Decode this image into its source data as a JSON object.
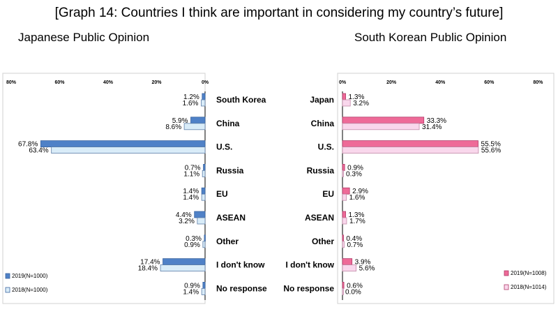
{
  "title": "[Graph 14: Countries I think are important in considering my country’s future]",
  "chart_data": [
    {
      "type": "bar",
      "title": "Japanese Public Opinion",
      "orientation": "horizontal",
      "direction": "reversed",
      "xlim": [
        0,
        80
      ],
      "ticks": [
        "80%",
        "60%",
        "40%",
        "20%",
        "0%"
      ],
      "categories": [
        "South Korea",
        "China",
        "U.S.",
        "Russia",
        "EU",
        "ASEAN",
        "Other",
        "I don't know",
        "No response"
      ],
      "series": [
        {
          "name": "2019(N=1000)",
          "color": "#4f81c7",
          "values": [
            1.2,
            5.9,
            67.8,
            0.7,
            1.4,
            4.4,
            0.3,
            17.4,
            0.9
          ],
          "labels": [
            "1.2%",
            "5.9%",
            "67.8%",
            "0.7%",
            "1.4%",
            "4.4%",
            "0.3%",
            "17.4%",
            "0.9%"
          ]
        },
        {
          "name": "2018(N=1000)",
          "color": "#d9ecf8",
          "values": [
            1.6,
            8.6,
            63.4,
            1.1,
            1.4,
            3.2,
            0.9,
            18.4,
            1.4
          ],
          "labels": [
            "1.6%",
            "8.6%",
            "63.4%",
            "1.1%",
            "1.4%",
            "3.2%",
            "0.9%",
            "18.4%",
            "1.4%"
          ]
        }
      ]
    },
    {
      "type": "bar",
      "title": "South Korean Public Opinion",
      "orientation": "horizontal",
      "direction": "normal",
      "xlim": [
        0,
        80
      ],
      "ticks": [
        "0%",
        "20%",
        "40%",
        "60%",
        "80%"
      ],
      "categories": [
        "Japan",
        "China",
        "U.S.",
        "Russia",
        "EU",
        "ASEAN",
        "Other",
        "I don't know",
        "No response"
      ],
      "series": [
        {
          "name": "2019(N=1008)",
          "color": "#ee6a98",
          "values": [
            1.3,
            33.3,
            55.5,
            0.9,
            2.9,
            1.3,
            0.4,
            3.9,
            0.6
          ],
          "labels": [
            "1.3%",
            "33.3%",
            "55.5%",
            "0.9%",
            "2.9%",
            "1.3%",
            "0.4%",
            "3.9%",
            "0.6%"
          ]
        },
        {
          "name": "2018(N=1014)",
          "color": "#f9d7ec",
          "values": [
            3.2,
            31.4,
            55.6,
            0.3,
            1.6,
            1.7,
            0.7,
            5.6,
            0.0
          ],
          "labels": [
            "3.2%",
            "31.4%",
            "55.6%",
            "0.3%",
            "1.6%",
            "1.7%",
            "0.7%",
            "5.6%",
            "0.0%"
          ]
        }
      ]
    }
  ]
}
